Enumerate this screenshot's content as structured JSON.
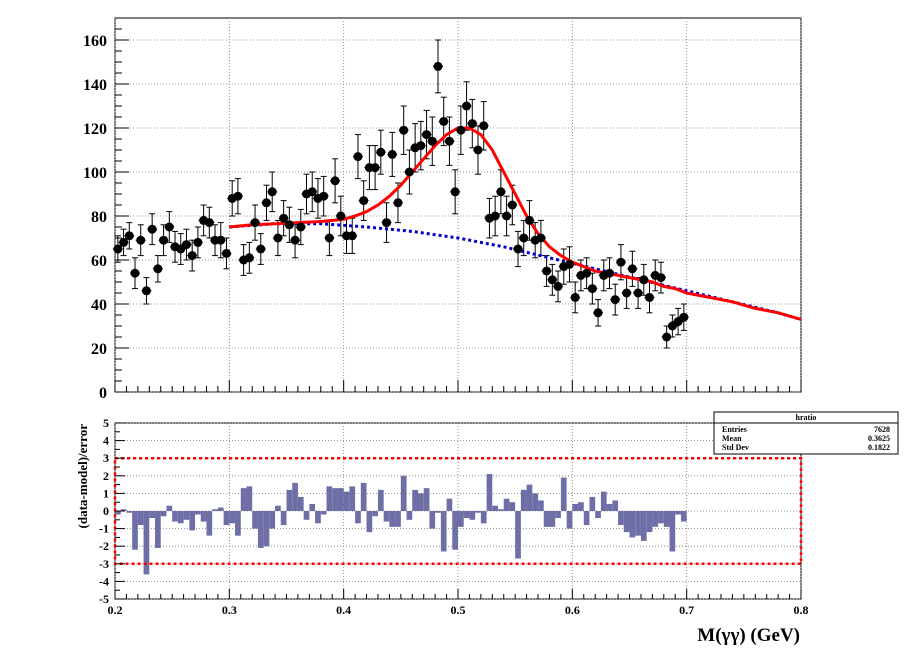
{
  "chart_data": [
    {
      "type": "scatter",
      "panel": "top",
      "xlim": [
        0.2,
        0.8
      ],
      "ylim": [
        0,
        170
      ],
      "yticks": [
        0,
        20,
        40,
        60,
        80,
        100,
        120,
        140,
        160
      ],
      "grid": true,
      "marker_color": "#000000",
      "points": [
        [
          0.2025,
          65,
          6
        ],
        [
          0.2075,
          68,
          6
        ],
        [
          0.2125,
          71,
          6
        ],
        [
          0.2175,
          54,
          7
        ],
        [
          0.2225,
          69,
          7
        ],
        [
          0.2275,
          46,
          6
        ],
        [
          0.2325,
          74,
          7
        ],
        [
          0.2375,
          56,
          6
        ],
        [
          0.2425,
          69,
          7
        ],
        [
          0.2475,
          75,
          7
        ],
        [
          0.2525,
          66,
          7
        ],
        [
          0.2575,
          65,
          7
        ],
        [
          0.2625,
          67,
          7
        ],
        [
          0.2675,
          62,
          7
        ],
        [
          0.2725,
          68,
          7
        ],
        [
          0.2775,
          78,
          7
        ],
        [
          0.2825,
          77,
          7
        ],
        [
          0.2875,
          69,
          7
        ],
        [
          0.2925,
          69,
          8
        ],
        [
          0.2975,
          63,
          7
        ],
        [
          0.3025,
          88,
          8
        ],
        [
          0.3075,
          89,
          8
        ],
        [
          0.3125,
          60,
          7
        ],
        [
          0.3175,
          61,
          7
        ],
        [
          0.3225,
          77,
          8
        ],
        [
          0.3275,
          65,
          7
        ],
        [
          0.3325,
          86,
          8
        ],
        [
          0.3375,
          91,
          9
        ],
        [
          0.3425,
          70,
          8
        ],
        [
          0.3475,
          79,
          8
        ],
        [
          0.3525,
          76,
          8
        ],
        [
          0.3575,
          69,
          8
        ],
        [
          0.3625,
          75,
          8
        ],
        [
          0.3675,
          90,
          9
        ],
        [
          0.3725,
          91,
          9
        ],
        [
          0.3775,
          88,
          9
        ],
        [
          0.3825,
          89,
          9
        ],
        [
          0.3875,
          70,
          8
        ],
        [
          0.3925,
          96,
          10
        ],
        [
          0.3975,
          80,
          9
        ],
        [
          0.4025,
          71,
          8
        ],
        [
          0.4075,
          71,
          8
        ],
        [
          0.4125,
          107,
          10
        ],
        [
          0.4175,
          87,
          9
        ],
        [
          0.4225,
          102,
          10
        ],
        [
          0.4275,
          102,
          10
        ],
        [
          0.4325,
          109,
          10
        ],
        [
          0.4375,
          77,
          9
        ],
        [
          0.4425,
          108,
          10
        ],
        [
          0.4475,
          86,
          9
        ],
        [
          0.4525,
          119,
          11
        ],
        [
          0.4575,
          100,
          10
        ],
        [
          0.4625,
          111,
          11
        ],
        [
          0.4675,
          112,
          11
        ],
        [
          0.4725,
          117,
          11
        ],
        [
          0.4775,
          114,
          11
        ],
        [
          0.4825,
          148,
          12
        ],
        [
          0.4875,
          123,
          11
        ],
        [
          0.4925,
          114,
          11
        ],
        [
          0.4975,
          91,
          10
        ],
        [
          0.5025,
          119,
          11
        ],
        [
          0.5075,
          130,
          11
        ],
        [
          0.5125,
          122,
          11
        ],
        [
          0.5175,
          110,
          11
        ],
        [
          0.5225,
          121,
          11
        ],
        [
          0.5275,
          79,
          9
        ],
        [
          0.5325,
          80,
          9
        ],
        [
          0.5375,
          91,
          10
        ],
        [
          0.5425,
          80,
          9
        ],
        [
          0.5475,
          85,
          9
        ],
        [
          0.5525,
          65,
          8
        ],
        [
          0.5575,
          70,
          8
        ],
        [
          0.5625,
          78,
          9
        ],
        [
          0.5675,
          69,
          8
        ],
        [
          0.5725,
          70,
          8
        ],
        [
          0.5775,
          55,
          7
        ],
        [
          0.5825,
          51,
          7
        ],
        [
          0.5875,
          48,
          7
        ],
        [
          0.5925,
          57,
          8
        ],
        [
          0.5975,
          58,
          8
        ],
        [
          0.6025,
          43,
          7
        ],
        [
          0.6075,
          53,
          7
        ],
        [
          0.6125,
          54,
          7
        ],
        [
          0.6175,
          47,
          7
        ],
        [
          0.6225,
          36,
          6
        ],
        [
          0.6275,
          53,
          7
        ],
        [
          0.6325,
          54,
          7
        ],
        [
          0.6375,
          42,
          7
        ],
        [
          0.6425,
          59,
          8
        ],
        [
          0.6475,
          45,
          7
        ],
        [
          0.6525,
          56,
          8
        ],
        [
          0.6575,
          45,
          7
        ],
        [
          0.6625,
          51,
          7
        ],
        [
          0.6675,
          43,
          7
        ],
        [
          0.6725,
          53,
          7
        ],
        [
          0.6775,
          52,
          7
        ],
        [
          0.6825,
          25,
          5
        ],
        [
          0.6875,
          30,
          5
        ],
        [
          0.6925,
          32,
          6
        ],
        [
          0.6975,
          34,
          6
        ]
      ],
      "fit_curve": {
        "color": "#ff0000",
        "x": [
          0.3,
          0.32,
          0.34,
          0.36,
          0.38,
          0.4,
          0.41,
          0.42,
          0.43,
          0.44,
          0.45,
          0.46,
          0.47,
          0.48,
          0.49,
          0.5,
          0.51,
          0.52,
          0.53,
          0.54,
          0.55,
          0.56,
          0.57,
          0.58,
          0.59,
          0.6,
          0.61,
          0.62,
          0.63,
          0.64,
          0.65,
          0.66,
          0.67,
          0.68,
          0.69,
          0.7,
          0.72,
          0.74,
          0.76,
          0.78,
          0.8
        ],
        "y": [
          75,
          76,
          76.5,
          77,
          77.5,
          78.5,
          80,
          82,
          85,
          89,
          94,
          100,
          106,
          112,
          117,
          120,
          120,
          117,
          110,
          100,
          90,
          80,
          72,
          66,
          62,
          59,
          57,
          55,
          54,
          53,
          52,
          51,
          50,
          48,
          47,
          45,
          43,
          41,
          38,
          36,
          33
        ]
      },
      "background_curve": {
        "color": "#0000cc",
        "x": [
          0.3,
          0.34,
          0.38,
          0.42,
          0.46,
          0.5,
          0.54,
          0.58,
          0.62,
          0.66,
          0.7,
          0.74,
          0.78,
          0.8
        ],
        "y": [
          75,
          76.5,
          76.5,
          75,
          73,
          70,
          66,
          61,
          56,
          51,
          46,
          41,
          36,
          33
        ]
      }
    },
    {
      "type": "bar",
      "panel": "bottom",
      "xlim": [
        0.2,
        0.8
      ],
      "ylim": [
        -5,
        5
      ],
      "yticks": [
        -5,
        -4,
        -3,
        -2,
        -1,
        0,
        1,
        2,
        3,
        4,
        5
      ],
      "xticks": [
        "0.2",
        "0.3",
        "0.4",
        "0.5",
        "0.6",
        "0.7",
        "0.8"
      ],
      "xlabel": "M(γγ) (GeV)",
      "ylabel": "(data-model)/error",
      "bar_color": "#6f6fa8",
      "band": {
        "y": [
          -3,
          3
        ],
        "color": "#ff0000"
      },
      "bin_width": 0.005,
      "x_start": 0.2,
      "values": [
        -0.2,
        0.1,
        -0.1,
        -2.2,
        -0.8,
        -3.6,
        -0.4,
        -2.1,
        -0.3,
        0.3,
        -0.6,
        -0.7,
        -0.5,
        -1.1,
        -0.2,
        -0.6,
        -1.4,
        0.1,
        0.2,
        -0.8,
        -0.7,
        -1.4,
        1.3,
        1.4,
        -1.0,
        -2.1,
        -2.0,
        -1.0,
        0.3,
        -0.8,
        1.2,
        1.6,
        0.8,
        -0.5,
        0.4,
        -0.7,
        -0.2,
        1.4,
        1.3,
        1.3,
        1.1,
        1.4,
        -0.7,
        1.6,
        -1.2,
        -0.3,
        1.2,
        -0.6,
        -0.9,
        -0.9,
        2.0,
        -0.5,
        1.2,
        1.0,
        1.3,
        -1.0,
        -0.1,
        -2.3,
        0.7,
        -2.2,
        -0.9,
        -0.4,
        -0.5,
        -0.1,
        -0.7,
        2.1,
        0.3,
        0.1,
        0.7,
        0.5,
        -2.7,
        1.2,
        1.5,
        1.0,
        0.6,
        -0.9,
        -0.9,
        -0.4,
        1.9,
        -1.0,
        0.4,
        0.5,
        -0.8,
        0.8,
        -0.4,
        1.1,
        0.4,
        0.6,
        -0.8,
        -1.2,
        -1.5,
        -1.4,
        -1.7,
        -1.2,
        -0.9,
        -0.7,
        -0.9,
        -2.3,
        -0.2,
        -0.6
      ]
    }
  ],
  "stats_box": {
    "title": "hratio",
    "rows": [
      {
        "label": "Entries",
        "value": "7628"
      },
      {
        "label": "Mean",
        "value": "0.3625"
      },
      {
        "label": "Std Dev",
        "value": "0.1822"
      }
    ]
  }
}
